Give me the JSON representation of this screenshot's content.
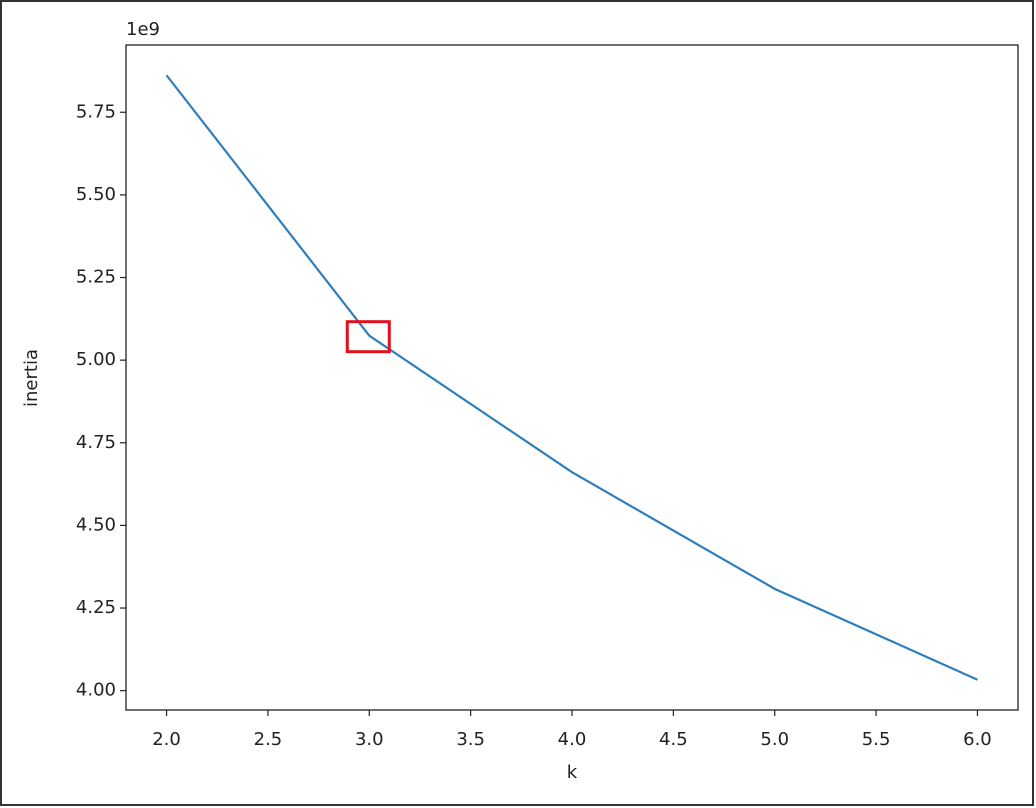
{
  "chart_data": {
    "type": "line",
    "x_label": "k",
    "y_label": "inertia",
    "y_offset_label": "1e9",
    "x": [
      2,
      3,
      4,
      5,
      6
    ],
    "values": [
      5.862,
      5.074,
      4.661,
      4.308,
      4.033
    ],
    "color": "#2e7ebc",
    "xlim": [
      1.8,
      6.2
    ],
    "ylim": [
      3.9415,
      5.9535
    ],
    "xticks": [
      {
        "value": 2,
        "label": "2.0"
      },
      {
        "value": 2.5,
        "label": "2.5"
      },
      {
        "value": 3,
        "label": "3.0"
      },
      {
        "value": 3.5,
        "label": "3.5"
      },
      {
        "value": 4,
        "label": "4.0"
      },
      {
        "value": 4.5,
        "label": "4.5"
      },
      {
        "value": 5,
        "label": "5.0"
      },
      {
        "value": 5.5,
        "label": "5.5"
      },
      {
        "value": 6,
        "label": "6.0"
      }
    ],
    "yticks": [
      {
        "value": 4,
        "label": "4.00"
      },
      {
        "value": 4.25,
        "label": "4.25"
      },
      {
        "value": 4.5,
        "label": "4.50"
      },
      {
        "value": 4.75,
        "label": "4.75"
      },
      {
        "value": 5,
        "label": "5.00"
      },
      {
        "value": 5.25,
        "label": "5.25"
      },
      {
        "value": 5.5,
        "label": "5.50"
      },
      {
        "value": 5.75,
        "label": "5.75"
      }
    ],
    "grid": false
  }
}
